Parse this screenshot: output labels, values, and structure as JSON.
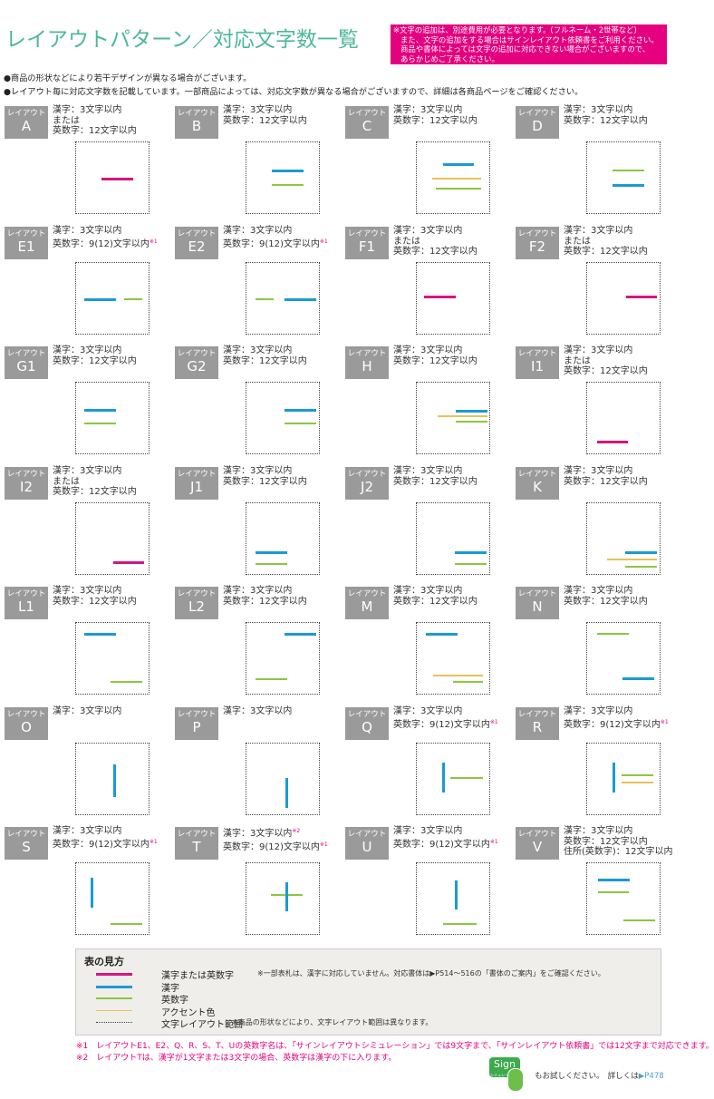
{
  "title": "レイアウトパターン／対応文字数一覧",
  "notice": [
    "※文字の追加は、別途費用が必要となります。(フルネーム・2世帯など)",
    "また、文字の追加をする場合はサインレイアウト依頼書をご利用ください。",
    "商品や書体によっては文字の追加に対応できない場合がございますので、",
    "あらかじめご了承ください。"
  ],
  "bullets": [
    "●商品の形状などにより若干デザインが異なる場合がございます。",
    "●レイアウト毎に対応文字数を記載しています。一部商品によっては、対応文字数が異なる場合がございますので、詳細は各商品ページをご確認ください。"
  ],
  "layout_word": "レイアウト",
  "colors": {
    "kanji_or_alnum": "#d6157f",
    "kanji": "#1a9ad6",
    "alnum": "#8dc63f",
    "accent": "#e8c15a",
    "title": "#4cb89a",
    "notice_bg": "#e4007f"
  },
  "layouts": [
    {
      "id": "A",
      "lines": [
        {
          "t": "漢字：3文字以内"
        },
        {
          "t": "または"
        },
        {
          "t": "英数字：12文字以内"
        }
      ]
    },
    {
      "id": "B",
      "lines": [
        {
          "t": "漢字：3文字以内"
        },
        {
          "t": "英数字：12文字以内"
        }
      ]
    },
    {
      "id": "C",
      "lines": [
        {
          "t": "漢字：3文字以内"
        },
        {
          "t": "英数字：12文字以内"
        }
      ]
    },
    {
      "id": "D",
      "lines": [
        {
          "t": "漢字：3文字以内"
        },
        {
          "t": "英数字：12文字以内"
        }
      ]
    },
    {
      "id": "E1",
      "lines": [
        {
          "t": "漢字：3文字以内"
        },
        {
          "t": "英数字：9(12)文字以内",
          "n": "※1"
        }
      ]
    },
    {
      "id": "E2",
      "lines": [
        {
          "t": "漢字：3文字以内"
        },
        {
          "t": "英数字：9(12)文字以内",
          "n": "※1"
        }
      ]
    },
    {
      "id": "F1",
      "lines": [
        {
          "t": "漢字：3文字以内"
        },
        {
          "t": "または"
        },
        {
          "t": "英数字：12文字以内"
        }
      ]
    },
    {
      "id": "F2",
      "lines": [
        {
          "t": "漢字：3文字以内"
        },
        {
          "t": "または"
        },
        {
          "t": "英数字：12文字以内"
        }
      ]
    },
    {
      "id": "G1",
      "lines": [
        {
          "t": "漢字：3文字以内"
        },
        {
          "t": "英数字：12文字以内"
        }
      ]
    },
    {
      "id": "G2",
      "lines": [
        {
          "t": "漢字：3文字以内"
        },
        {
          "t": "英数字：12文字以内"
        }
      ]
    },
    {
      "id": "H",
      "lines": [
        {
          "t": "漢字：3文字以内"
        },
        {
          "t": "英数字：12文字以内"
        }
      ]
    },
    {
      "id": "I1",
      "lines": [
        {
          "t": "漢字：3文字以内"
        },
        {
          "t": "または"
        },
        {
          "t": "英数字：12文字以内"
        }
      ]
    },
    {
      "id": "I2",
      "lines": [
        {
          "t": "漢字：3文字以内"
        },
        {
          "t": "または"
        },
        {
          "t": "英数字：12文字以内"
        }
      ]
    },
    {
      "id": "J1",
      "lines": [
        {
          "t": "漢字：3文字以内"
        },
        {
          "t": "英数字：12文字以内"
        }
      ]
    },
    {
      "id": "J2",
      "lines": [
        {
          "t": "漢字：3文字以内"
        },
        {
          "t": "英数字：12文字以内"
        }
      ]
    },
    {
      "id": "K",
      "lines": [
        {
          "t": "漢字：3文字以内"
        },
        {
          "t": "英数字：12文字以内"
        }
      ]
    },
    {
      "id": "L1",
      "lines": [
        {
          "t": "漢字：3文字以内"
        },
        {
          "t": "英数字：12文字以内"
        }
      ]
    },
    {
      "id": "L2",
      "lines": [
        {
          "t": "漢字：3文字以内"
        },
        {
          "t": "英数字：12文字以内"
        }
      ]
    },
    {
      "id": "M",
      "lines": [
        {
          "t": "漢字：3文字以内"
        },
        {
          "t": "英数字：12文字以内"
        }
      ]
    },
    {
      "id": "N",
      "lines": [
        {
          "t": "漢字：3文字以内"
        },
        {
          "t": "英数字：12文字以内"
        }
      ]
    },
    {
      "id": "O",
      "lines": [
        {
          "t": "漢字：3文字以内"
        }
      ]
    },
    {
      "id": "P",
      "lines": [
        {
          "t": "漢字：3文字以内"
        }
      ]
    },
    {
      "id": "Q",
      "lines": [
        {
          "t": "漢字：3文字以内"
        },
        {
          "t": "英数字：9(12)文字以内",
          "n": "※1"
        }
      ]
    },
    {
      "id": "R",
      "lines": [
        {
          "t": "漢字：3文字以内"
        },
        {
          "t": "英数字：9(12)文字以内",
          "n": "※1"
        }
      ]
    },
    {
      "id": "S",
      "lines": [
        {
          "t": "漢字：3文字以内"
        },
        {
          "t": "英数字：9(12)文字以内",
          "n": "※1"
        }
      ]
    },
    {
      "id": "T",
      "lines": [
        {
          "t": "漢字：3文字以内",
          "n": "※2"
        },
        {
          "t": "英数字：9(12)文字以内",
          "n": "※1"
        }
      ]
    },
    {
      "id": "U",
      "lines": [
        {
          "t": "漢字：3文字以内"
        },
        {
          "t": "英数字：9(12)文字以内",
          "n": "※1"
        }
      ]
    },
    {
      "id": "V",
      "lines": [
        {
          "t": "漢字：3文字以内"
        },
        {
          "t": "英数字：12文字以内"
        },
        {
          "t": "住所(英数字)：12文字以内"
        }
      ]
    }
  ],
  "legend": {
    "heading": "表の見方",
    "items": [
      {
        "label": "漢字または英数字",
        "note": "※一部表札は、漢字に対応していません。対応書体は▶P514〜516の「書体のご案内」をご確認ください。",
        "type": "kanji_or_alnum"
      },
      {
        "label": "漢字",
        "type": "kanji"
      },
      {
        "label": "英数字",
        "type": "alnum"
      },
      {
        "label": "アクセント色",
        "type": "accent"
      },
      {
        "label": "文字レイアウト範囲",
        "note": "※商品の形状などにより、文字レイアウト範囲は異なります。",
        "type": "range"
      }
    ]
  },
  "footnotes": [
    "※1　レイアウトE1、E2、Q、R、S、T、Uの英数字名は、「サインレイアウトシミュレーション」では9文字まで、「サインレイアウト依頼書」では12文字まで対応できます。",
    "※2　レイアウトTは、漢字が1文字または3文字の場合、英数字は漢字の下に入ります。"
  ],
  "promo": {
    "logo_text": "Sign",
    "logo_sub": "シミュレーション",
    "text": "もお試しください。　詳しくは",
    "ref": "▶P478"
  }
}
